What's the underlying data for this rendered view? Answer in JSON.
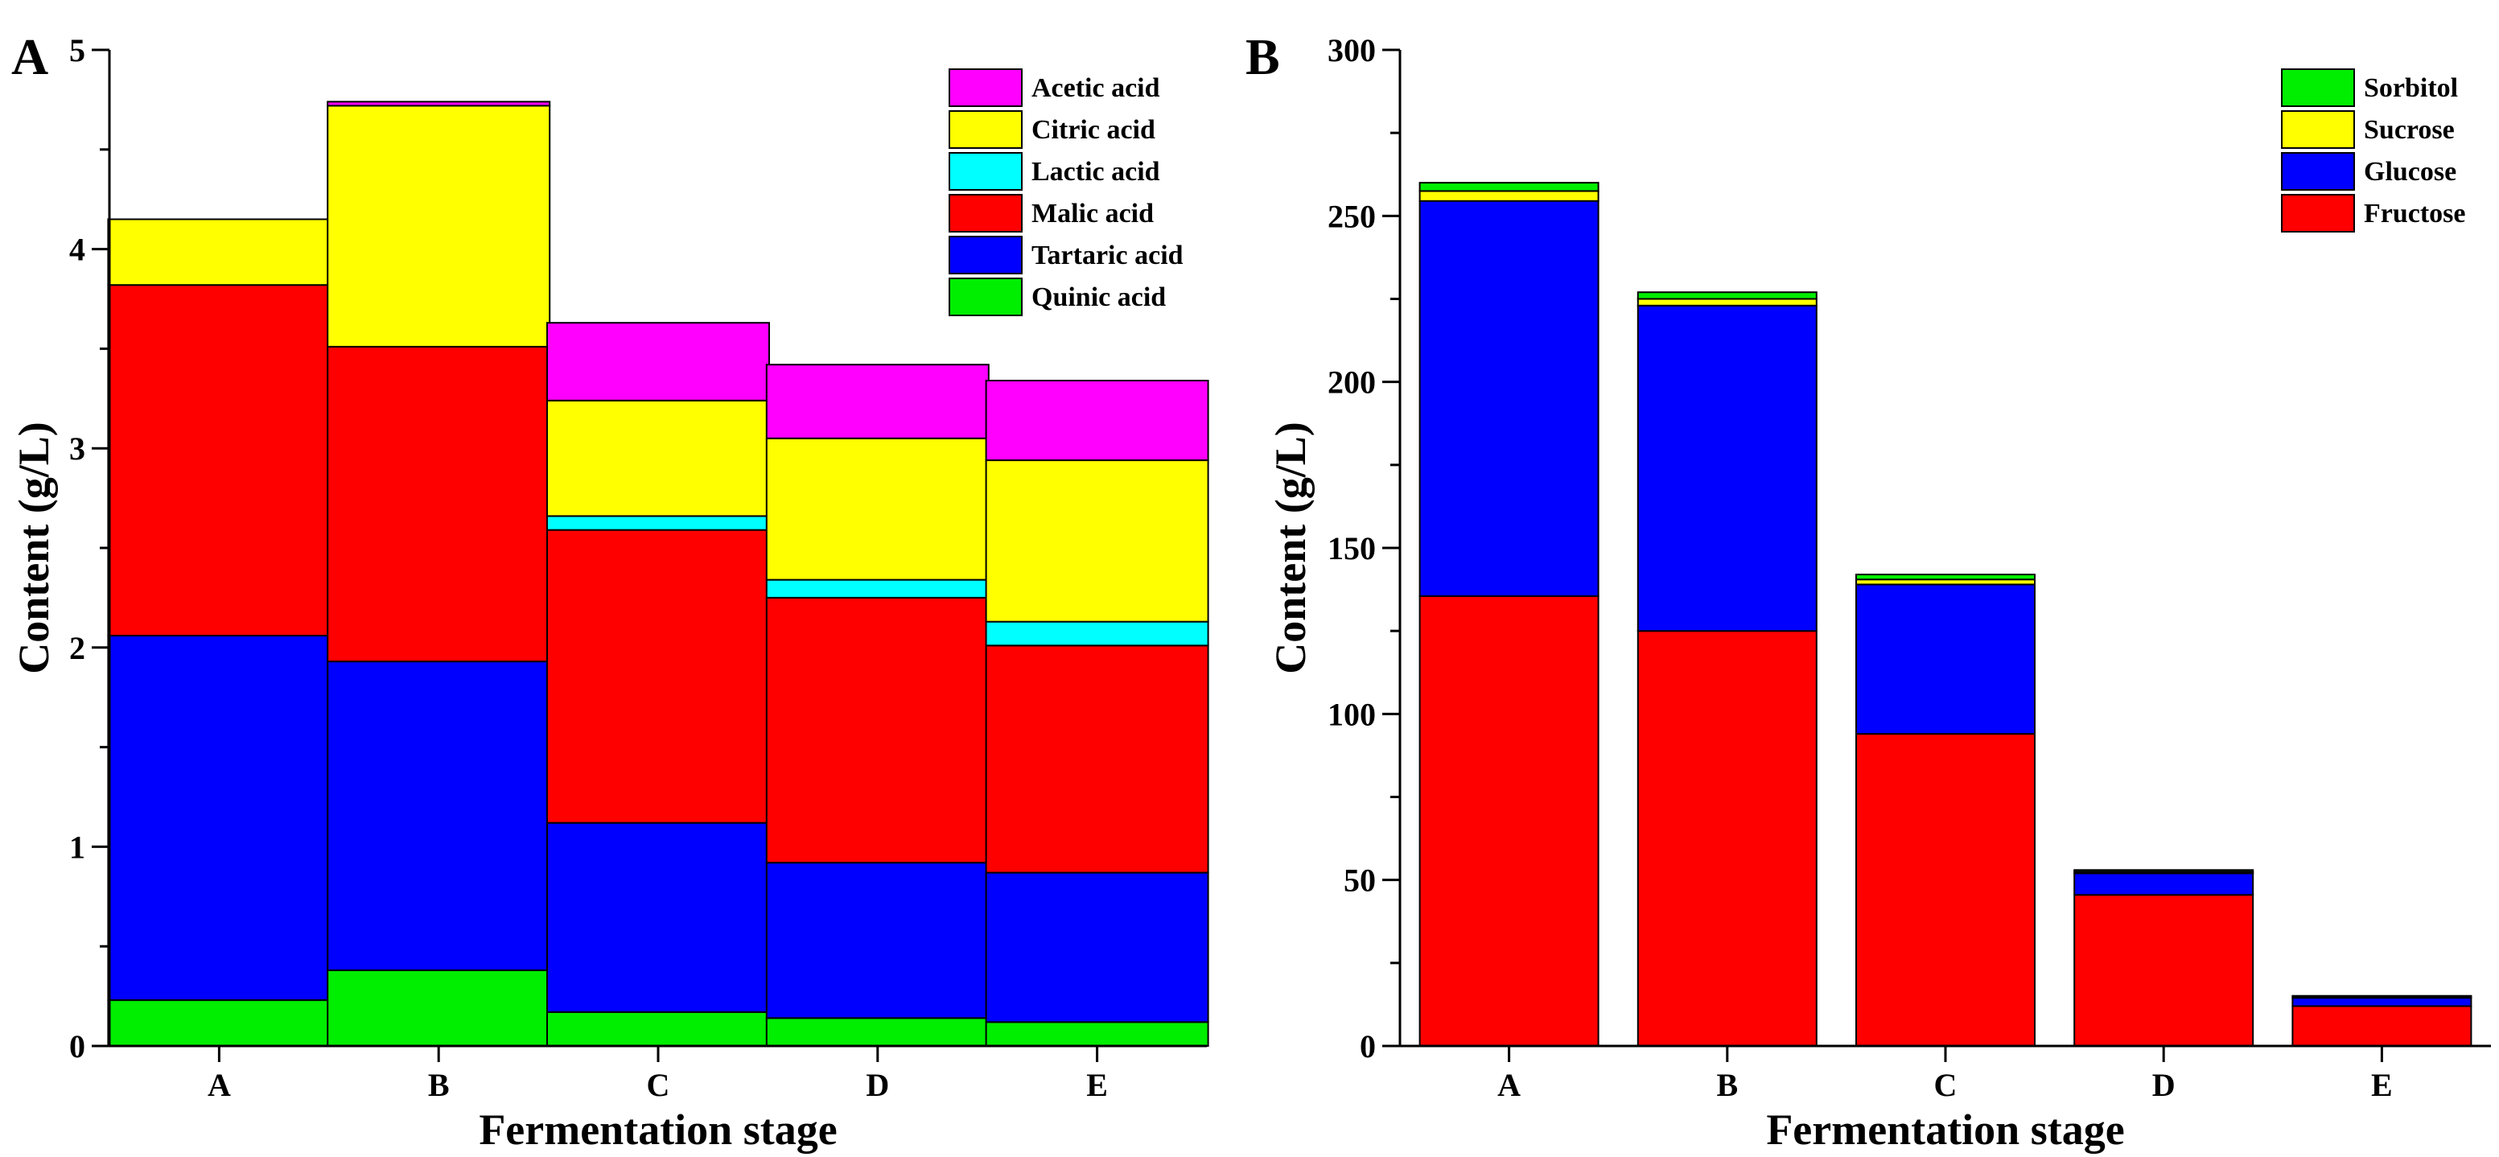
{
  "chart_data": [
    {
      "type": "bar",
      "stacked": true,
      "panel_label": "A",
      "categories": [
        "A",
        "B",
        "C",
        "D",
        "E"
      ],
      "xlabel": "Fermentation stage",
      "ylabel": "Content (g/L)",
      "ylim": [
        0,
        5
      ],
      "yticks": [
        "0",
        "1",
        "2",
        "3",
        "4",
        "5"
      ],
      "legend_position": "top-right",
      "grid": false,
      "series": [
        {
          "name": "Quinic acid",
          "color": "#00ee00",
          "values": [
            0.23,
            0.38,
            0.17,
            0.14,
            0.12
          ]
        },
        {
          "name": "Tartaric acid",
          "color": "#0000ff",
          "values": [
            1.83,
            1.55,
            0.95,
            0.78,
            0.75
          ]
        },
        {
          "name": "Malic acid",
          "color": "#ff0000",
          "values": [
            1.76,
            1.58,
            1.47,
            1.33,
            1.14
          ]
        },
        {
          "name": "Lactic acid",
          "color": "#00ffff",
          "values": [
            0.0,
            0.0,
            0.07,
            0.09,
            0.12
          ]
        },
        {
          "name": "Citric acid",
          "color": "#ffff00",
          "values": [
            0.33,
            1.21,
            0.58,
            0.71,
            0.81
          ]
        },
        {
          "name": "Acetic acid",
          "color": "#ff00ff",
          "values": [
            0.0,
            0.02,
            0.39,
            0.37,
            0.4
          ]
        }
      ]
    },
    {
      "type": "bar",
      "stacked": true,
      "panel_label": "B",
      "categories": [
        "A",
        "B",
        "C",
        "D",
        "E"
      ],
      "xlabel": "Fermentation stage",
      "ylabel": "Content (g/L)",
      "ylim": [
        0,
        300
      ],
      "yticks": [
        "0",
        "50",
        "100",
        "150",
        "200",
        "250",
        "300"
      ],
      "legend_position": "top-right",
      "grid": false,
      "series": [
        {
          "name": "Fructose",
          "color": "#ff0000",
          "values": [
            135.5,
            125.0,
            94.0,
            45.5,
            12.0
          ]
        },
        {
          "name": "Glucose",
          "color": "#0000ff",
          "values": [
            119.0,
            98.0,
            45.0,
            6.5,
            2.5
          ]
        },
        {
          "name": "Sucrose",
          "color": "#ffff00",
          "values": [
            3.0,
            2.0,
            1.5,
            0.5,
            0.3
          ]
        },
        {
          "name": "Sorbitol",
          "color": "#00ee00",
          "values": [
            2.5,
            2.0,
            1.5,
            0.5,
            0.3
          ]
        }
      ]
    }
  ]
}
